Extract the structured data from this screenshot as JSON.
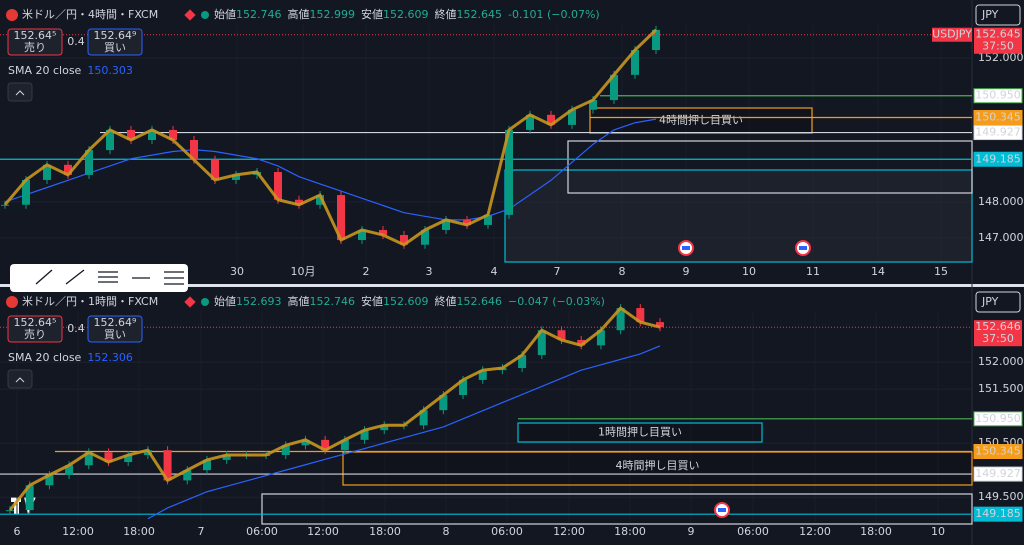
{
  "chart_data": [
    {
      "type": "candlestick",
      "title": "米ドル／円・4時間・FXCM",
      "ohlc": [
        {
          "name": "始値",
          "value": "152.746"
        },
        {
          "name": "高値",
          "value": "152.999"
        },
        {
          "name": "安値",
          "value": "152.609"
        },
        {
          "name": "終値",
          "value": "152.645"
        }
      ],
      "change": "-0.101 (−0.07%)",
      "trade": {
        "sell_price": "152.64⁵",
        "sell": "売り",
        "spread": "0.4",
        "buy_price": "152.64⁹",
        "buy": "買い"
      },
      "indicator": {
        "name": "SMA 20 close",
        "value": "150.303"
      },
      "currency": "JPY",
      "symbol_tag": "USDJPY",
      "price": 152.645,
      "countdown": "37:50",
      "x_labels": [
        "30",
        "10月",
        "2",
        "3",
        "4",
        "7",
        "8",
        "9",
        "10",
        "11",
        "14",
        "15"
      ],
      "close": [
        147.92,
        148.61,
        149.03,
        148.75,
        149.44,
        150.0,
        149.72,
        150.0,
        149.72,
        149.17,
        148.61,
        148.75,
        148.83,
        148.06,
        147.92,
        148.19,
        146.94,
        147.22,
        147.08,
        146.81,
        147.22,
        147.5,
        147.36,
        147.64,
        150.0,
        150.42,
        150.14,
        150.56,
        150.83,
        151.53,
        152.22,
        152.78
      ],
      "sma": [
        148.0,
        148.2,
        148.4,
        148.6,
        148.8,
        149.0,
        149.2,
        149.3,
        149.4,
        149.45,
        149.4,
        149.3,
        149.2,
        149.0,
        148.7,
        148.5,
        148.3,
        148.1,
        147.9,
        147.7,
        147.6,
        147.5,
        147.5,
        147.6,
        147.8,
        148.2,
        148.6,
        149.1,
        149.6,
        150.0,
        150.2,
        150.3
      ],
      "ylim": [
        146.33,
        153.61
      ],
      "yticks": [
        {
          "value": 147,
          "label": "147.000"
        },
        {
          "value": 148,
          "label": "148.000"
        },
        {
          "value": 152,
          "label": "152.000"
        }
      ],
      "levels": [
        {
          "value": 150.95,
          "label": "150.950",
          "color": "#4caf50"
        },
        {
          "value": 150.345,
          "color": "#f59c1a"
        },
        {
          "value": 149.927,
          "color": "#d1d4dc"
        },
        {
          "value": 149.185,
          "color": "#00bcd4"
        }
      ],
      "zones": [
        "4時間押し目買い"
      ]
    },
    {
      "type": "candlestick",
      "title": "米ドル／円・1時間・FXCM",
      "ohlc": [
        {
          "name": "始値",
          "value": "152.693"
        },
        {
          "name": "高値",
          "value": "152.746"
        },
        {
          "name": "安値",
          "value": "152.609"
        },
        {
          "name": "終値",
          "value": "152.646"
        }
      ],
      "change": "−0.047 (−0.03%)",
      "trade": {
        "sell_price": "152.64⁵",
        "sell": "売り",
        "spread": "0.4",
        "buy_price": "152.64⁹",
        "buy": "買い"
      },
      "indicator": {
        "name": "SMA 20 close",
        "value": "152.306"
      },
      "currency": "JPY",
      "price": 152.646,
      "countdown": "37:50",
      "x_labels": [
        "6",
        "12:00",
        "18:00",
        "7",
        "06:00",
        "12:00",
        "18:00",
        "8",
        "06:00",
        "12:00",
        "18:00",
        "9",
        "06:00",
        "12:00",
        "18:00",
        "10"
      ],
      "close": [
        149.26,
        149.72,
        149.91,
        150.09,
        150.33,
        150.15,
        150.28,
        150.37,
        149.81,
        150.0,
        150.19,
        150.28,
        150.28,
        150.28,
        150.46,
        150.56,
        150.37,
        150.56,
        150.74,
        150.83,
        150.83,
        151.11,
        151.39,
        151.67,
        151.85,
        151.89,
        152.13,
        152.59,
        152.41,
        152.31,
        152.59,
        153.0,
        152.74,
        152.646
      ],
      "sma": [
        null,
        null,
        null,
        null,
        null,
        null,
        null,
        149.1,
        149.3,
        149.45,
        149.6,
        149.7,
        149.8,
        149.9,
        150.0,
        150.1,
        150.2,
        150.3,
        150.4,
        150.5,
        150.6,
        150.7,
        150.8,
        150.95,
        151.1,
        151.25,
        151.4,
        151.55,
        151.7,
        151.85,
        151.95,
        152.05,
        152.15,
        152.3
      ],
      "ylim": [
        149.04,
        153.39
      ],
      "yticks": [
        {
          "value": 149.5,
          "label": "149.500"
        },
        {
          "value": 150.5,
          "label": "150.500"
        },
        {
          "value": 151.5,
          "label": "151.500"
        },
        {
          "value": 152,
          "label": "152.000"
        }
      ],
      "levels": [
        {
          "value": 150.95,
          "label": "150.950",
          "color": "#4caf50"
        },
        {
          "value": 150.345,
          "color": "#f59c1a"
        },
        {
          "value": 149.927,
          "color": "#d1d4dc"
        },
        {
          "value": 149.185,
          "color": "#00bcd4"
        }
      ],
      "zones": [
        "1時間押し目買い",
        "4時間押し目買い"
      ]
    }
  ]
}
